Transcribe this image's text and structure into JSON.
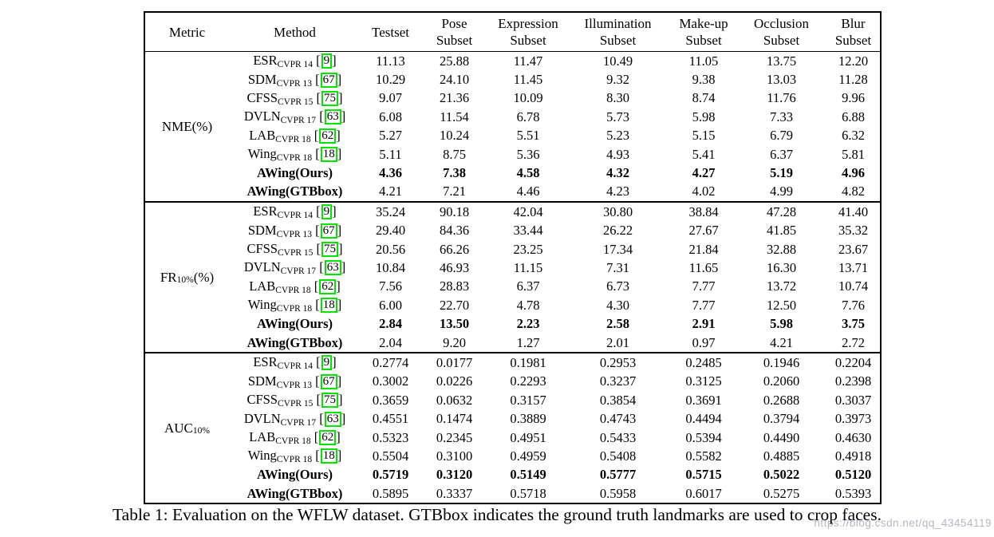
{
  "caption": "Table 1: Evaluation on the WFLW dataset. GTBbox indicates the ground truth landmarks are used to crop faces.",
  "watermark": {
    "text": "https://blog.csdn.net/qq_43454119",
    "color": "#b4b6c2"
  },
  "colors": {
    "citation_box": "#00e400",
    "text": "#000000",
    "background": "#ffffff"
  },
  "chart_data": {
    "type": "table",
    "title": "Evaluation on the WFLW dataset",
    "columns": [
      {
        "line1": "Metric",
        "line2": ""
      },
      {
        "line1": "Method",
        "line2": ""
      },
      {
        "line1": "Testset",
        "line2": ""
      },
      {
        "line1": "Pose",
        "line2": "Subset"
      },
      {
        "line1": "Expression",
        "line2": "Subset"
      },
      {
        "line1": "Illumination",
        "line2": "Subset"
      },
      {
        "line1": "Make-up",
        "line2": "Subset"
      },
      {
        "line1": "Occlusion",
        "line2": "Subset"
      },
      {
        "line1": "Blur",
        "line2": "Subset"
      }
    ],
    "sections": [
      {
        "metric": {
          "pre": "NME",
          "sub": "",
          "post": "(%)"
        },
        "rows": [
          {
            "name": "ESR",
            "sub": "CVPR 14",
            "cite": "9",
            "bold": "none",
            "values": [
              "11.13",
              "25.88",
              "11.47",
              "10.49",
              "11.05",
              "13.75",
              "12.20"
            ]
          },
          {
            "name": "SDM",
            "sub": "CVPR 13",
            "cite": "67",
            "bold": "none",
            "values": [
              "10.29",
              "24.10",
              "11.45",
              "9.32",
              "9.38",
              "13.03",
              "11.28"
            ]
          },
          {
            "name": "CFSS",
            "sub": "CVPR 15",
            "cite": "75",
            "bold": "none",
            "values": [
              "9.07",
              "21.36",
              "10.09",
              "8.30",
              "8.74",
              "11.76",
              "9.96"
            ]
          },
          {
            "name": "DVLN",
            "sub": "CVPR 17",
            "cite": "63",
            "bold": "none",
            "values": [
              "6.08",
              "11.54",
              "6.78",
              "5.73",
              "5.98",
              "7.33",
              "6.88"
            ]
          },
          {
            "name": "LAB",
            "sub": "CVPR 18",
            "cite": "62",
            "bold": "none",
            "values": [
              "5.27",
              "10.24",
              "5.51",
              "5.23",
              "5.15",
              "6.79",
              "6.32"
            ]
          },
          {
            "name": "Wing",
            "sub": "CVPR 18",
            "cite": "18",
            "bold": "none",
            "values": [
              "5.11",
              "8.75",
              "5.36",
              "4.93",
              "5.41",
              "6.37",
              "5.81"
            ]
          },
          {
            "name": "AWing(Ours)",
            "sub": "",
            "cite": "",
            "bold": "row",
            "values": [
              "4.36",
              "7.38",
              "4.58",
              "4.32",
              "4.27",
              "5.19",
              "4.96"
            ]
          },
          {
            "name": "AWing(GTBbox)",
            "sub": "",
            "cite": "",
            "bold": "name",
            "values": [
              "4.21",
              "7.21",
              "4.46",
              "4.23",
              "4.02",
              "4.99",
              "4.82"
            ]
          }
        ]
      },
      {
        "metric": {
          "pre": "FR",
          "sub": "10%",
          "post": "(%)"
        },
        "rows": [
          {
            "name": "ESR",
            "sub": "CVPR 14",
            "cite": "9",
            "bold": "none",
            "values": [
              "35.24",
              "90.18",
              "42.04",
              "30.80",
              "38.84",
              "47.28",
              "41.40"
            ]
          },
          {
            "name": "SDM",
            "sub": "CVPR 13",
            "cite": "67",
            "bold": "none",
            "values": [
              "29.40",
              "84.36",
              "33.44",
              "26.22",
              "27.67",
              "41.85",
              "35.32"
            ]
          },
          {
            "name": "CFSS",
            "sub": "CVPR 15",
            "cite": "75",
            "bold": "none",
            "values": [
              "20.56",
              "66.26",
              "23.25",
              "17.34",
              "21.84",
              "32.88",
              "23.67"
            ]
          },
          {
            "name": "DVLN",
            "sub": "CVPR 17",
            "cite": "63",
            "bold": "none",
            "values": [
              "10.84",
              "46.93",
              "11.15",
              "7.31",
              "11.65",
              "16.30",
              "13.71"
            ]
          },
          {
            "name": "LAB",
            "sub": "CVPR 18",
            "cite": "62",
            "bold": "none",
            "values": [
              "7.56",
              "28.83",
              "6.37",
              "6.73",
              "7.77",
              "13.72",
              "10.74"
            ]
          },
          {
            "name": "Wing",
            "sub": "CVPR 18",
            "cite": "18",
            "bold": "none",
            "values": [
              "6.00",
              "22.70",
              "4.78",
              "4.30",
              "7.77",
              "12.50",
              "7.76"
            ]
          },
          {
            "name": "AWing(Ours)",
            "sub": "",
            "cite": "",
            "bold": "row",
            "values": [
              "2.84",
              "13.50",
              "2.23",
              "2.58",
              "2.91",
              "5.98",
              "3.75"
            ]
          },
          {
            "name": "AWing(GTBbox)",
            "sub": "",
            "cite": "",
            "bold": "name",
            "values": [
              "2.04",
              "9.20",
              "1.27",
              "2.01",
              "0.97",
              "4.21",
              "2.72"
            ]
          }
        ]
      },
      {
        "metric": {
          "pre": "AUC",
          "sub": "10%",
          "post": ""
        },
        "rows": [
          {
            "name": "ESR",
            "sub": "CVPR 14",
            "cite": "9",
            "bold": "none",
            "values": [
              "0.2774",
              "0.0177",
              "0.1981",
              "0.2953",
              "0.2485",
              "0.1946",
              "0.2204"
            ]
          },
          {
            "name": "SDM",
            "sub": "CVPR 13",
            "cite": "67",
            "bold": "none",
            "values": [
              "0.3002",
              "0.0226",
              "0.2293",
              "0.3237",
              "0.3125",
              "0.2060",
              "0.2398"
            ]
          },
          {
            "name": "CFSS",
            "sub": "CVPR 15",
            "cite": "75",
            "bold": "none",
            "values": [
              "0.3659",
              "0.0632",
              "0.3157",
              "0.3854",
              "0.3691",
              "0.2688",
              "0.3037"
            ]
          },
          {
            "name": "DVLN",
            "sub": "CVPR 17",
            "cite": "63",
            "bold": "none",
            "values": [
              "0.4551",
              "0.1474",
              "0.3889",
              "0.4743",
              "0.4494",
              "0.3794",
              "0.3973"
            ]
          },
          {
            "name": "LAB",
            "sub": "CVPR 18",
            "cite": "62",
            "bold": "none",
            "values": [
              "0.5323",
              "0.2345",
              "0.4951",
              "0.5433",
              "0.5394",
              "0.4490",
              "0.4630"
            ]
          },
          {
            "name": "Wing",
            "sub": "CVPR 18",
            "cite": "18",
            "bold": "none",
            "values": [
              "0.5504",
              "0.3100",
              "0.4959",
              "0.5408",
              "0.5582",
              "0.4885",
              "0.4918"
            ]
          },
          {
            "name": "AWing(Ours)",
            "sub": "",
            "cite": "",
            "bold": "row",
            "values": [
              "0.5719",
              "0.3120",
              "0.5149",
              "0.5777",
              "0.5715",
              "0.5022",
              "0.5120"
            ]
          },
          {
            "name": "AWing(GTBbox)",
            "sub": "",
            "cite": "",
            "bold": "name",
            "values": [
              "0.5895",
              "0.3337",
              "0.5718",
              "0.5958",
              "0.6017",
              "0.5275",
              "0.5393"
            ]
          }
        ]
      }
    ]
  }
}
